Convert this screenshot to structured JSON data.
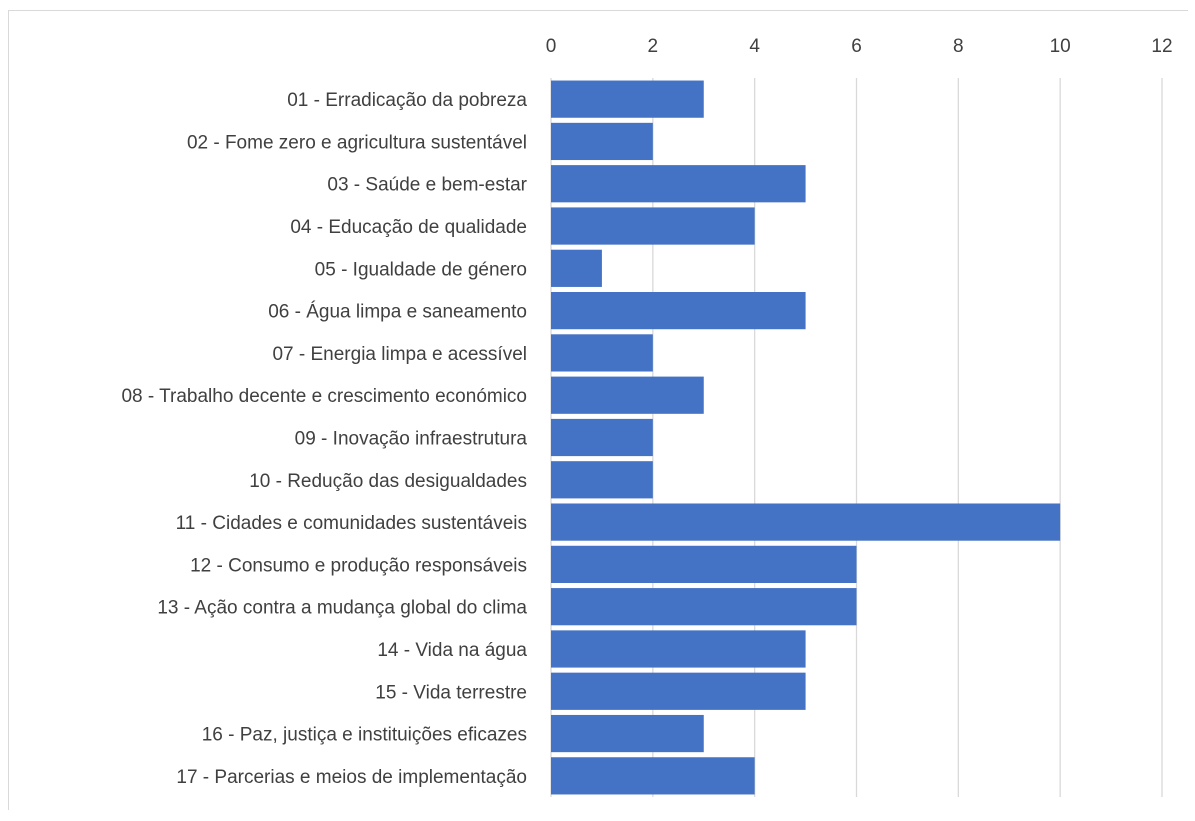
{
  "chart_data": {
    "type": "bar",
    "orientation": "horizontal",
    "categories": [
      "01 - Erradicação da pobreza",
      "02 - Fome zero e agricultura sustentável",
      "03 - Saúde e bem-estar",
      "04 - Educação de qualidade",
      "05 - Igualdade de género",
      "06 - Água limpa e saneamento",
      "07 - Energia limpa e acessível",
      "08 - Trabalho decente e crescimento económico",
      "09 - Inovação infraestrutura",
      "10 - Redução das desigualdades",
      "11 - Cidades e comunidades sustentáveis",
      "12 - Consumo e produção responsáveis",
      "13 - Ação contra a mudança global do clima",
      "14 - Vida na água",
      "15 - Vida terrestre",
      "16 - Paz, justiça e instituições eficazes",
      "17 - Parcerias e meios de implementação"
    ],
    "values": [
      3,
      2,
      5,
      4,
      1,
      5,
      2,
      3,
      2,
      2,
      10,
      6,
      6,
      5,
      5,
      3,
      4
    ],
    "xlim": [
      0,
      12
    ],
    "x_ticks": [
      "0",
      "2",
      "4",
      "6",
      "8",
      "10",
      "12"
    ],
    "x_axis_position": "top",
    "grid": true,
    "bar_color": "#4472c4",
    "grid_color": "#d9d9d9",
    "title": "",
    "xlabel": "",
    "ylabel": ""
  }
}
